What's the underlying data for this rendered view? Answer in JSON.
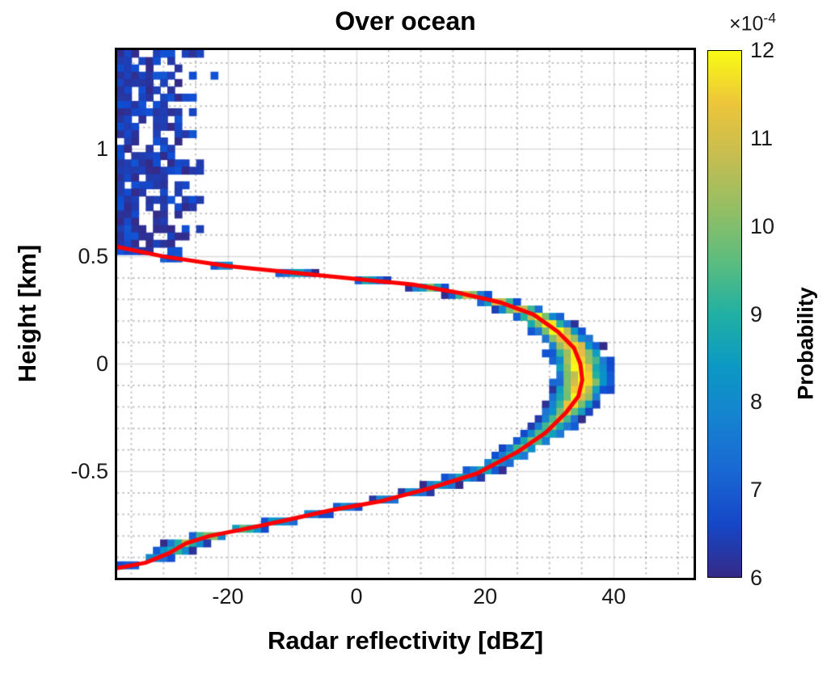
{
  "chart_data": {
    "type": "heatmap",
    "title": "Over ocean",
    "xlabel": "Radar reflectivity [dBZ]",
    "ylabel": "Height [km]",
    "xlim": [
      -37.2,
      52.4
    ],
    "ylim": [
      -0.995,
      1.46
    ],
    "xticks": [
      -20,
      0,
      20,
      40
    ],
    "yticks": [
      1,
      0.5,
      0,
      -0.5
    ],
    "minor_grid": {
      "x_step": 5,
      "y_step": 0.1
    },
    "grid": true,
    "colormap": "parula",
    "colorbar": {
      "label": "Probability",
      "scale": {
        "prefix": "×10",
        "exponent": "-4"
      },
      "min": 6,
      "max": 12,
      "ticks": [
        6,
        7,
        8,
        9,
        10,
        11,
        12
      ]
    },
    "bin_size": {
      "dx": 1.12,
      "dy": 0.034
    },
    "mean_profile": {
      "name": "mean-reflectivity-profile",
      "color": "#ff0000",
      "points": [
        [
          -37.2,
          0.545
        ],
        [
          -30,
          0.5
        ],
        [
          -20,
          0.455
        ],
        [
          -10,
          0.425
        ],
        [
          0,
          0.395
        ],
        [
          8.7,
          0.37
        ],
        [
          16,
          0.33
        ],
        [
          22.5,
          0.285
        ],
        [
          27.5,
          0.23
        ],
        [
          31.3,
          0.15
        ],
        [
          33.8,
          0.075
        ],
        [
          34.8,
          0.0
        ],
        [
          35.1,
          -0.075
        ],
        [
          34.5,
          -0.15
        ],
        [
          32.6,
          -0.225
        ],
        [
          29.4,
          -0.32
        ],
        [
          25,
          -0.41
        ],
        [
          18.7,
          -0.51
        ],
        [
          11.2,
          -0.58
        ],
        [
          3.6,
          -0.64
        ],
        [
          -3.9,
          -0.68
        ],
        [
          -11.4,
          -0.73
        ],
        [
          -17.7,
          -0.77
        ],
        [
          -22.8,
          -0.8
        ],
        [
          -26.5,
          -0.835
        ],
        [
          -29.1,
          -0.88
        ],
        [
          -32.8,
          -0.925
        ],
        [
          -37.2,
          -0.95
        ]
      ]
    },
    "density_band": {
      "y_top": 0.52,
      "y_bottom": -0.96,
      "halfwidth": {
        "base": 2.1,
        "nose_extra": 1.0,
        "nose_center": -0.02,
        "nose_sigma": 0.22
      },
      "peak_by_height": [
        [
          0.52,
          7.0
        ],
        [
          0.46,
          7.6
        ],
        [
          0.4,
          8.6
        ],
        [
          0.34,
          10.2
        ],
        [
          0.28,
          11.4
        ],
        [
          0.2,
          12
        ],
        [
          0.05,
          12
        ],
        [
          -0.1,
          12
        ],
        [
          -0.2,
          11.2
        ],
        [
          -0.32,
          9.8
        ],
        [
          -0.45,
          8.8
        ],
        [
          -0.58,
          8.2
        ],
        [
          -0.7,
          7.6
        ],
        [
          -0.76,
          9.5
        ],
        [
          -0.82,
          10.8
        ],
        [
          -0.88,
          9.0
        ],
        [
          -0.96,
          6.8
        ]
      ]
    },
    "noise_scatter": {
      "y_bottom": 0.52,
      "x_max": -22,
      "edge_mean": -28,
      "edge_jitter": 6,
      "value_spread": 0.9
    }
  }
}
